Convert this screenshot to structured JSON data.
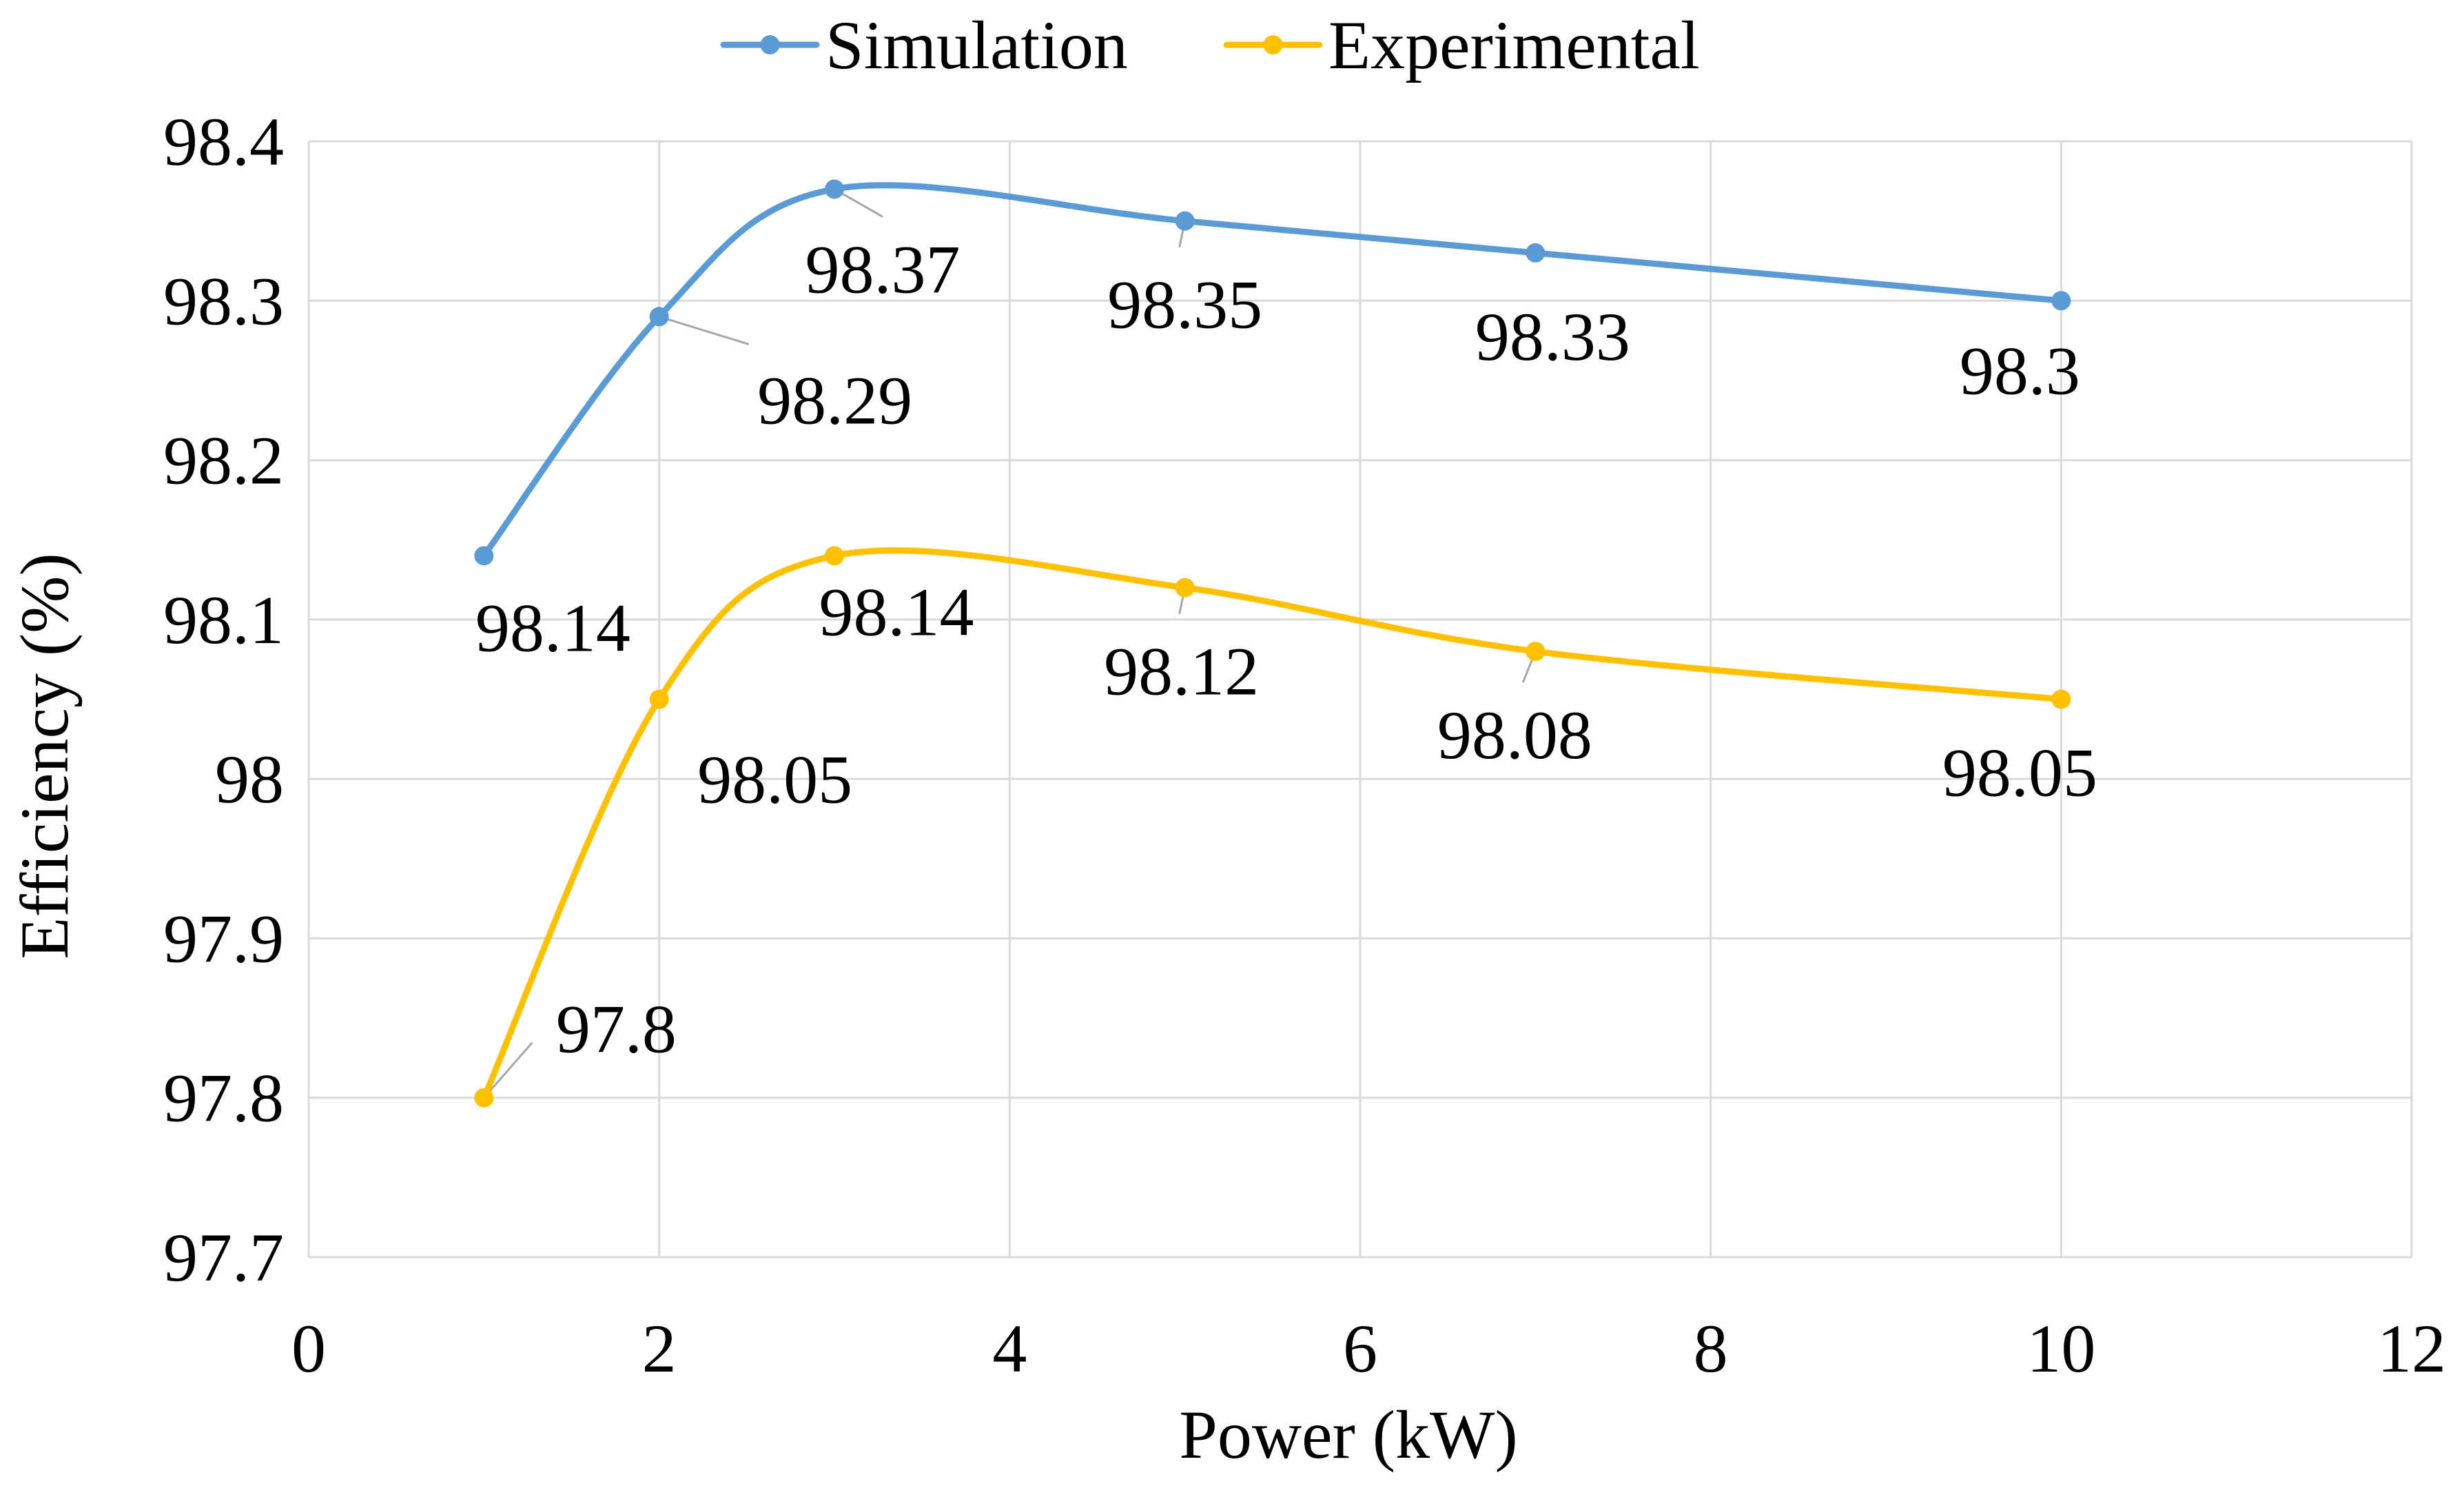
{
  "chart_data": {
    "type": "line",
    "title": "",
    "xlabel": "Power (kW)",
    "ylabel": "Efficiency (%)",
    "xlim": [
      0,
      12
    ],
    "ylim": [
      97.7,
      98.4
    ],
    "x_ticks": [
      0,
      2,
      4,
      6,
      8,
      10,
      12
    ],
    "x_tick_labels": [
      "0",
      "2",
      "4",
      "6",
      "8",
      "10",
      "12"
    ],
    "y_ticks": [
      97.7,
      97.8,
      97.9,
      98.0,
      98.1,
      98.2,
      98.3,
      98.4
    ],
    "y_tick_labels": [
      "97.7",
      "97.8",
      "97.9",
      "98",
      "98.1",
      "98.2",
      "98.3",
      "98.4"
    ],
    "grid": true,
    "smooth": true,
    "legend_position": "top-center",
    "series": [
      {
        "name": "Simulation",
        "color": "#5b9bd5",
        "x": [
          1,
          2,
          3,
          5,
          7,
          10
        ],
        "values": [
          98.14,
          98.29,
          98.37,
          98.35,
          98.33,
          98.3
        ],
        "labels": [
          "98.14",
          "98.29",
          "98.37",
          "98.35",
          "98.33",
          "98.3"
        ]
      },
      {
        "name": "Experimental",
        "color": "#ffc000",
        "x": [
          1,
          2,
          3,
          5,
          7,
          10
        ],
        "values": [
          97.8,
          98.05,
          98.14,
          98.12,
          98.08,
          98.05
        ],
        "labels": [
          "97.8",
          "98.05",
          "98.14",
          "98.12",
          "98.08",
          "98.05"
        ]
      }
    ]
  }
}
